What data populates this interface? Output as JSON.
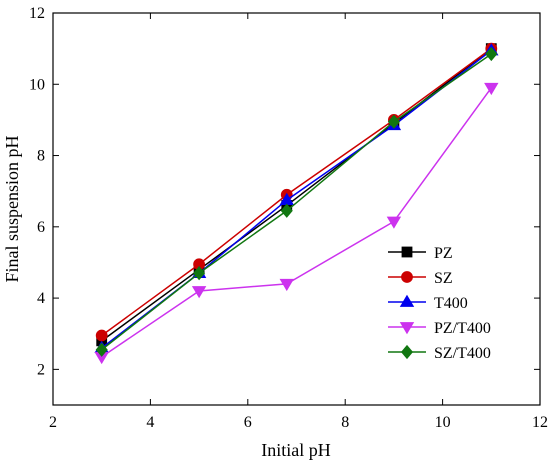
{
  "chart_data": {
    "type": "line",
    "xlabel": "Initial pH",
    "ylabel": "Final suspension pH",
    "xlim": [
      2,
      12
    ],
    "ylim": [
      1,
      12
    ],
    "x_ticks": [
      2,
      4,
      6,
      8,
      10,
      12
    ],
    "y_ticks": [
      2,
      4,
      6,
      8,
      10,
      12
    ],
    "grid": false,
    "legend_position": "bottom-right",
    "x": [
      3,
      5,
      6.8,
      9,
      11
    ],
    "series": [
      {
        "name": "PZ",
        "values": [
          2.8,
          4.8,
          6.6,
          8.9,
          11.0
        ],
        "color": "#000000",
        "marker": "square"
      },
      {
        "name": "SZ",
        "values": [
          2.95,
          4.95,
          6.9,
          9.0,
          11.0
        ],
        "color": "#cc0000",
        "marker": "circle"
      },
      {
        "name": "T400",
        "values": [
          2.6,
          4.7,
          6.75,
          8.85,
          10.95
        ],
        "color": "#0000ee",
        "marker": "triangle-up"
      },
      {
        "name": "PZ/T400",
        "values": [
          2.35,
          4.2,
          4.4,
          6.15,
          9.9
        ],
        "color": "#cc33ee",
        "marker": "triangle-down"
      },
      {
        "name": "SZ/T400",
        "values": [
          2.55,
          4.7,
          6.45,
          8.95,
          10.85
        ],
        "color": "#117711",
        "marker": "diamond"
      }
    ]
  }
}
